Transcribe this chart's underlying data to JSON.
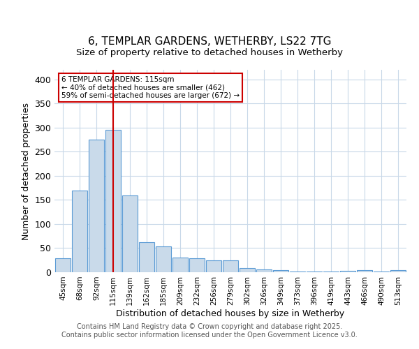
{
  "title1": "6, TEMPLAR GARDENS, WETHERBY, LS22 7TG",
  "title2": "Size of property relative to detached houses in Wetherby",
  "xlabel": "Distribution of detached houses by size in Wetherby",
  "ylabel": "Number of detached properties",
  "categories": [
    "45sqm",
    "68sqm",
    "92sqm",
    "115sqm",
    "139sqm",
    "162sqm",
    "185sqm",
    "209sqm",
    "232sqm",
    "256sqm",
    "279sqm",
    "302sqm",
    "326sqm",
    "349sqm",
    "373sqm",
    "396sqm",
    "419sqm",
    "443sqm",
    "466sqm",
    "490sqm",
    "513sqm"
  ],
  "values": [
    29,
    170,
    275,
    295,
    160,
    62,
    53,
    30,
    29,
    25,
    25,
    9,
    6,
    4,
    1,
    1,
    1,
    3,
    4,
    1,
    4
  ],
  "bar_color": "#c9daea",
  "bar_edge_color": "#5b9bd5",
  "vline_x": 3.0,
  "vline_color": "#cc0000",
  "annotation_text": "6 TEMPLAR GARDENS: 115sqm\n← 40% of detached houses are smaller (462)\n59% of semi-detached houses are larger (672) →",
  "annotation_box_color": "#ffffff",
  "annotation_box_edge_color": "#cc0000",
  "ylim": [
    0,
    420
  ],
  "yticks": [
    0,
    50,
    100,
    150,
    200,
    250,
    300,
    350,
    400
  ],
  "background_color": "#ffffff",
  "grid_color": "#c8d8e8",
  "footer_line1": "Contains HM Land Registry data © Crown copyright and database right 2025.",
  "footer_line2": "Contains public sector information licensed under the Open Government Licence v3.0."
}
